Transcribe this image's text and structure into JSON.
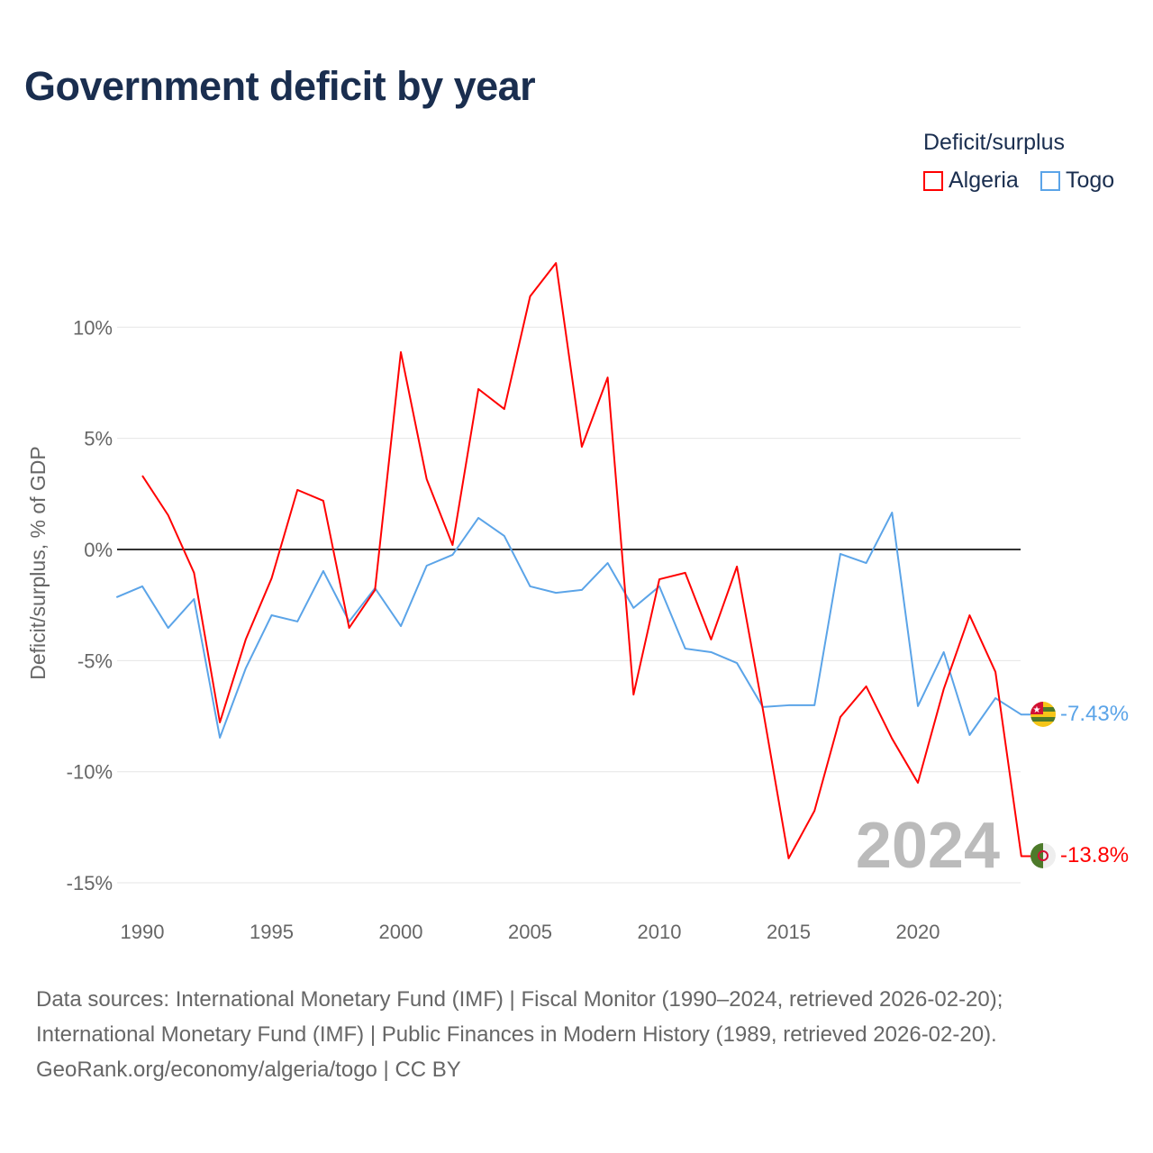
{
  "title": "Government deficit by year",
  "legend": {
    "title": "Deficit/surplus",
    "items": [
      "Algeria",
      "Togo"
    ]
  },
  "year_label": "2024",
  "end_labels": {
    "algeria": "-13.8%",
    "togo": "-7.43%"
  },
  "source": {
    "line1": "Data sources: International Monetary Fund (IMF) | Fiscal Monitor (1990–2024, retrieved 2026-02-20);",
    "line2": "International Monetary Fund (IMF) | Public Finances in Modern History (1989, retrieved 2026-02-20).",
    "line3": "GeoRank.org/economy/algeria/togo | CC BY"
  },
  "chart_data": {
    "type": "line",
    "title": "Government deficit by year",
    "ylabel": "Deficit/surplus, % of GDP",
    "xlabel": "",
    "xlim": [
      1989,
      2024
    ],
    "ylim": [
      -16.5,
      13.5
    ],
    "xticks": [
      1990,
      1995,
      2000,
      2005,
      2010,
      2015,
      2020
    ],
    "yticks": [
      {
        "v": 10,
        "label": "10%"
      },
      {
        "v": 5,
        "label": "5%"
      },
      {
        "v": 0,
        "label": "0%"
      },
      {
        "v": -5,
        "label": "-5%"
      },
      {
        "v": -10,
        "label": "-10%"
      },
      {
        "v": -15,
        "label": "-15%"
      }
    ],
    "series": [
      {
        "name": "Algeria",
        "color": "#ff0000",
        "start": 1990,
        "values": [
          3.32,
          1.54,
          -1.05,
          -7.78,
          -4.05,
          -1.3,
          2.68,
          2.19,
          -3.53,
          -1.82,
          8.88,
          3.16,
          0.2,
          7.22,
          6.32,
          11.39,
          12.89,
          4.62,
          7.74,
          -6.53,
          -1.34,
          -1.05,
          -4.05,
          -0.77,
          -7.17,
          -13.9,
          -11.76,
          -7.54,
          -6.16,
          -8.51,
          -10.5,
          -6.28,
          -2.96,
          -5.51,
          -13.8
        ]
      },
      {
        "name": "Togo",
        "color": "#5ba4e8",
        "start": 1989,
        "values": [
          -2.15,
          -1.66,
          -3.53,
          -2.23,
          -8.47,
          -5.35,
          -2.96,
          -3.24,
          -0.97,
          -3.24,
          -1.74,
          -3.45,
          -0.73,
          -0.24,
          1.42,
          0.61,
          -1.66,
          -1.95,
          -1.82,
          -0.61,
          -2.63,
          -1.66,
          -4.46,
          -4.62,
          -5.11,
          -7.09,
          -7.01,
          -7.01,
          -0.2,
          -0.61,
          1.66,
          -7.05,
          -4.62,
          -8.35,
          -6.69,
          -7.43
        ]
      }
    ]
  }
}
